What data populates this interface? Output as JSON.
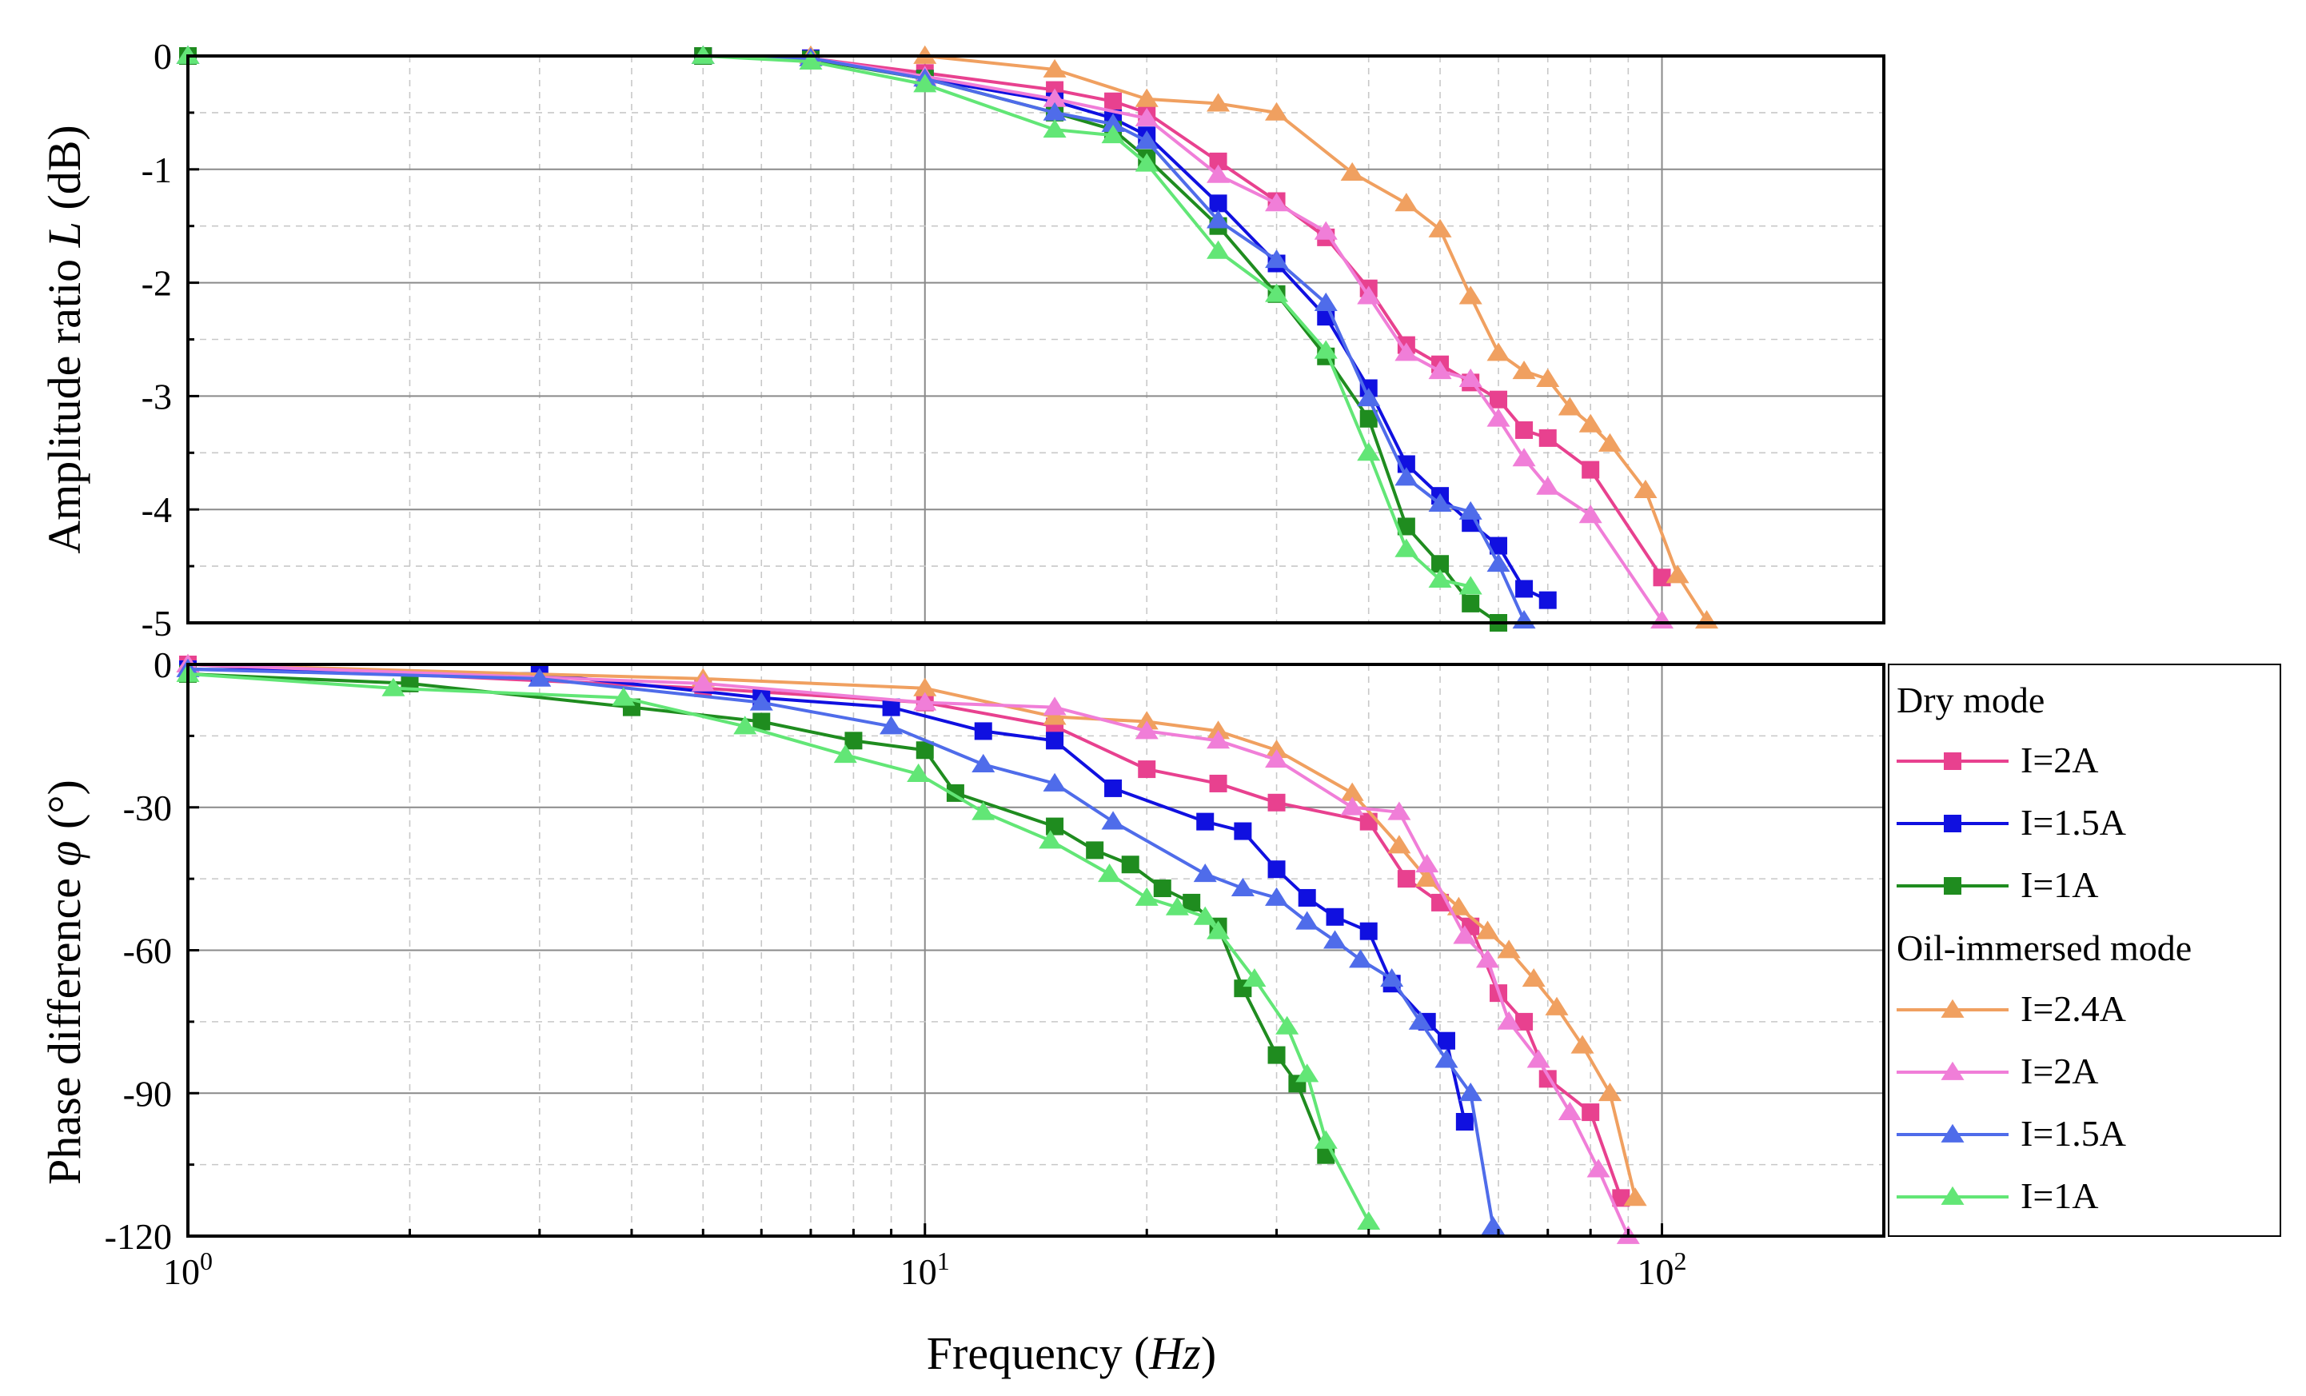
{
  "chart_data": [
    {
      "type": "line",
      "id": "amplitude",
      "ylabel": "Amplitude ratio L (dB)",
      "ylabel_prefix": "Amplitude ratio ",
      "ylabel_var": "L",
      "ylabel_suffix": " (dB)",
      "xscale": "log",
      "xlim": [
        1,
        200
      ],
      "ylim": [
        -5,
        0
      ],
      "yticks": [
        0,
        -1,
        -2,
        -3,
        -4,
        -5
      ],
      "ytick_labels": [
        "0",
        "-1",
        "-2",
        "-3",
        "-4",
        "-5"
      ],
      "grid": true,
      "series": [
        {
          "name": "Dry I=2A",
          "marker": "square",
          "color": "#e8418f",
          "x": [
            1,
            5,
            7,
            10,
            15,
            18,
            20,
            25,
            30,
            35,
            40,
            45,
            50,
            55,
            60,
            65,
            70,
            80,
            100
          ],
          "y": [
            0,
            0,
            -0.02,
            -0.15,
            -0.3,
            -0.4,
            -0.5,
            -0.93,
            -1.28,
            -1.6,
            -2.05,
            -2.55,
            -2.72,
            -2.88,
            -3.03,
            -3.3,
            -3.37,
            -3.65,
            -4.6
          ]
        },
        {
          "name": "Dry I=1.5A",
          "marker": "square",
          "color": "#1010e0",
          "x": [
            1,
            5,
            7,
            10,
            15,
            18,
            20,
            25,
            30,
            35,
            40,
            45,
            50,
            55,
            60,
            65,
            70
          ],
          "y": [
            0,
            0,
            -0.02,
            -0.2,
            -0.4,
            -0.55,
            -0.7,
            -1.3,
            -1.83,
            -2.3,
            -2.93,
            -3.6,
            -3.88,
            -4.12,
            -4.32,
            -4.7,
            -4.8
          ]
        },
        {
          "name": "Dry I=1A",
          "marker": "square",
          "color": "#1f8c1f",
          "x": [
            1,
            5,
            7,
            10,
            15,
            18,
            20,
            25,
            30,
            35,
            40,
            45,
            50,
            55,
            60
          ],
          "y": [
            0,
            0,
            -0.03,
            -0.2,
            -0.5,
            -0.65,
            -0.9,
            -1.5,
            -2.1,
            -2.65,
            -3.2,
            -4.15,
            -4.48,
            -4.83,
            -5.0
          ]
        },
        {
          "name": "Oil I=2.4A",
          "marker": "triangle",
          "color": "#f0a060",
          "x": [
            1,
            5,
            7,
            10,
            15,
            20,
            25,
            30,
            38,
            45,
            50,
            55,
            60,
            65,
            70,
            75,
            80,
            85,
            95,
            105,
            115
          ],
          "y": [
            0,
            0,
            0,
            0,
            -0.12,
            -0.38,
            -0.42,
            -0.5,
            -1.03,
            -1.3,
            -1.53,
            -2.12,
            -2.62,
            -2.78,
            -2.85,
            -3.1,
            -3.25,
            -3.42,
            -3.83,
            -4.58,
            -4.98
          ]
        },
        {
          "name": "Oil I=2A",
          "marker": "triangle",
          "color": "#f07ed8",
          "x": [
            1,
            5,
            7,
            10,
            15,
            20,
            25,
            30,
            35,
            40,
            45,
            50,
            55,
            60,
            65,
            70,
            80,
            100
          ],
          "y": [
            0,
            0,
            -0.02,
            -0.18,
            -0.38,
            -0.55,
            -1.05,
            -1.3,
            -1.55,
            -2.12,
            -2.62,
            -2.78,
            -2.85,
            -3.2,
            -3.55,
            -3.8,
            -4.05,
            -4.98
          ]
        },
        {
          "name": "Oil I=1.5A",
          "marker": "triangle",
          "color": "#4f6cea",
          "x": [
            1,
            5,
            7,
            10,
            15,
            18,
            20,
            25,
            30,
            35,
            40,
            45,
            50,
            55,
            60,
            65
          ],
          "y": [
            0,
            0,
            -0.02,
            -0.2,
            -0.5,
            -0.6,
            -0.75,
            -1.45,
            -1.8,
            -2.18,
            -3.02,
            -3.72,
            -3.95,
            -4.02,
            -4.48,
            -4.98
          ]
        },
        {
          "name": "Oil I=1A",
          "marker": "triangle",
          "color": "#62e676",
          "x": [
            1,
            5,
            7,
            10,
            15,
            18,
            20,
            25,
            30,
            35,
            40,
            45,
            50,
            55
          ],
          "y": [
            0,
            0,
            -0.05,
            -0.25,
            -0.65,
            -0.7,
            -0.95,
            -1.72,
            -2.1,
            -2.6,
            -3.5,
            -4.35,
            -4.62,
            -4.68
          ]
        }
      ]
    },
    {
      "type": "line",
      "id": "phase",
      "ylabel": "Phase difference φ (°)",
      "ylabel_prefix": "Phase difference ",
      "ylabel_var": "φ",
      "ylabel_suffix": " (°)",
      "xlabel": "Frequency (Hz)",
      "xlabel_prefix": "Frequency (",
      "xlabel_var": "Hz",
      "xlabel_suffix": ")",
      "xscale": "log",
      "xlim": [
        1,
        200
      ],
      "ylim": [
        -120,
        0
      ],
      "yticks": [
        0,
        -30,
        -60,
        -90,
        -120
      ],
      "ytick_labels": [
        "0",
        "-30",
        "-60",
        "-90",
        "-120"
      ],
      "xticks": [
        1,
        10,
        100
      ],
      "xtick_bases": [
        "10",
        "10",
        "10"
      ],
      "xtick_exps": [
        "0",
        "1",
        "2"
      ],
      "grid": true,
      "series": [
        {
          "name": "Dry I=2A",
          "marker": "square",
          "color": "#e8418f",
          "x": [
            1,
            5,
            10,
            15,
            20,
            25,
            30,
            40,
            45,
            50,
            55,
            60,
            65,
            70,
            80,
            88
          ],
          "y": [
            0,
            -5,
            -8,
            -13,
            -22,
            -25,
            -29,
            -33,
            -45,
            -50,
            -55,
            -69,
            -75,
            -87,
            -94,
            -112
          ]
        },
        {
          "name": "Dry I=1.5A",
          "marker": "square",
          "color": "#1010e0",
          "x": [
            1,
            3,
            6,
            9,
            12,
            15,
            18,
            24,
            27,
            30,
            33,
            36,
            40,
            43,
            48,
            51,
            54
          ],
          "y": [
            -1,
            -2,
            -7,
            -9,
            -14,
            -16,
            -26,
            -33,
            -35,
            -43,
            -49,
            -53,
            -56,
            -67,
            -75,
            -79,
            -96
          ]
        },
        {
          "name": "Dry I=1A",
          "marker": "square",
          "color": "#1f8c1f",
          "x": [
            1,
            2,
            4,
            6,
            8,
            10,
            11,
            15,
            17,
            19,
            21,
            23,
            25,
            27,
            30,
            32,
            35
          ],
          "y": [
            -2,
            -4,
            -9,
            -12,
            -16,
            -18,
            -27,
            -34,
            -39,
            -42,
            -47,
            -50,
            -55,
            -68,
            -82,
            -88,
            -103
          ]
        },
        {
          "name": "Oil I=2.4A",
          "marker": "triangle",
          "color": "#f0a060",
          "x": [
            1,
            5,
            10,
            15,
            20,
            25,
            30,
            38,
            44,
            48,
            53,
            58,
            62,
            67,
            72,
            78,
            85,
            92
          ],
          "y": [
            0,
            -3,
            -5,
            -11,
            -12,
            -14,
            -18,
            -27,
            -38,
            -45,
            -51,
            -56,
            -60,
            -66,
            -72,
            -80,
            -90,
            -112
          ]
        },
        {
          "name": "Oil I=2A",
          "marker": "triangle",
          "color": "#f07ed8",
          "x": [
            1,
            5,
            10,
            15,
            20,
            25,
            30,
            38,
            44,
            48,
            54,
            58,
            62,
            68,
            75,
            82,
            90
          ],
          "y": [
            0,
            -4,
            -8,
            -9,
            -14,
            -16,
            -20,
            -30,
            -31,
            -42,
            -57,
            -62,
            -75,
            -83,
            -94,
            -106,
            -120
          ]
        },
        {
          "name": "Oil I=1.5A",
          "marker": "triangle",
          "color": "#4f6cea",
          "x": [
            1,
            3,
            6,
            9,
            12,
            15,
            18,
            24,
            27,
            30,
            33,
            36,
            39,
            43,
            47,
            51,
            55,
            59
          ],
          "y": [
            -1,
            -3,
            -8,
            -13,
            -21,
            -25,
            -33,
            -44,
            -47,
            -49,
            -54,
            -58,
            -62,
            -66,
            -75,
            -83,
            -90,
            -118
          ]
        },
        {
          "name": "Oil I=1A",
          "marker": "triangle",
          "color": "#62e676",
          "x": [
            1,
            1.9,
            3.9,
            5.7,
            7.8,
            9.8,
            12,
            14.8,
            17.8,
            20,
            22,
            24,
            25,
            28,
            31,
            33,
            35,
            40
          ],
          "y": [
            -2,
            -5,
            -7,
            -13,
            -19,
            -23,
            -31,
            -37,
            -44,
            -49,
            -51,
            -53,
            -56,
            -66,
            -76,
            -86,
            -100,
            -117
          ]
        }
      ]
    }
  ],
  "legend": {
    "dry_heading": "Dry mode",
    "oil_heading": "Oil-immersed mode",
    "items": [
      {
        "label": "I=2A",
        "group": "dry",
        "series": 0
      },
      {
        "label": "I=1.5A",
        "group": "dry",
        "series": 1
      },
      {
        "label": "I=1A",
        "group": "dry",
        "series": 2
      },
      {
        "label": "I=2.4A",
        "group": "oil",
        "series": 3
      },
      {
        "label": "I=2A",
        "group": "oil",
        "series": 4
      },
      {
        "label": "I=1.5A",
        "group": "oil",
        "series": 5
      },
      {
        "label": "I=1A",
        "group": "oil",
        "series": 6
      }
    ]
  }
}
